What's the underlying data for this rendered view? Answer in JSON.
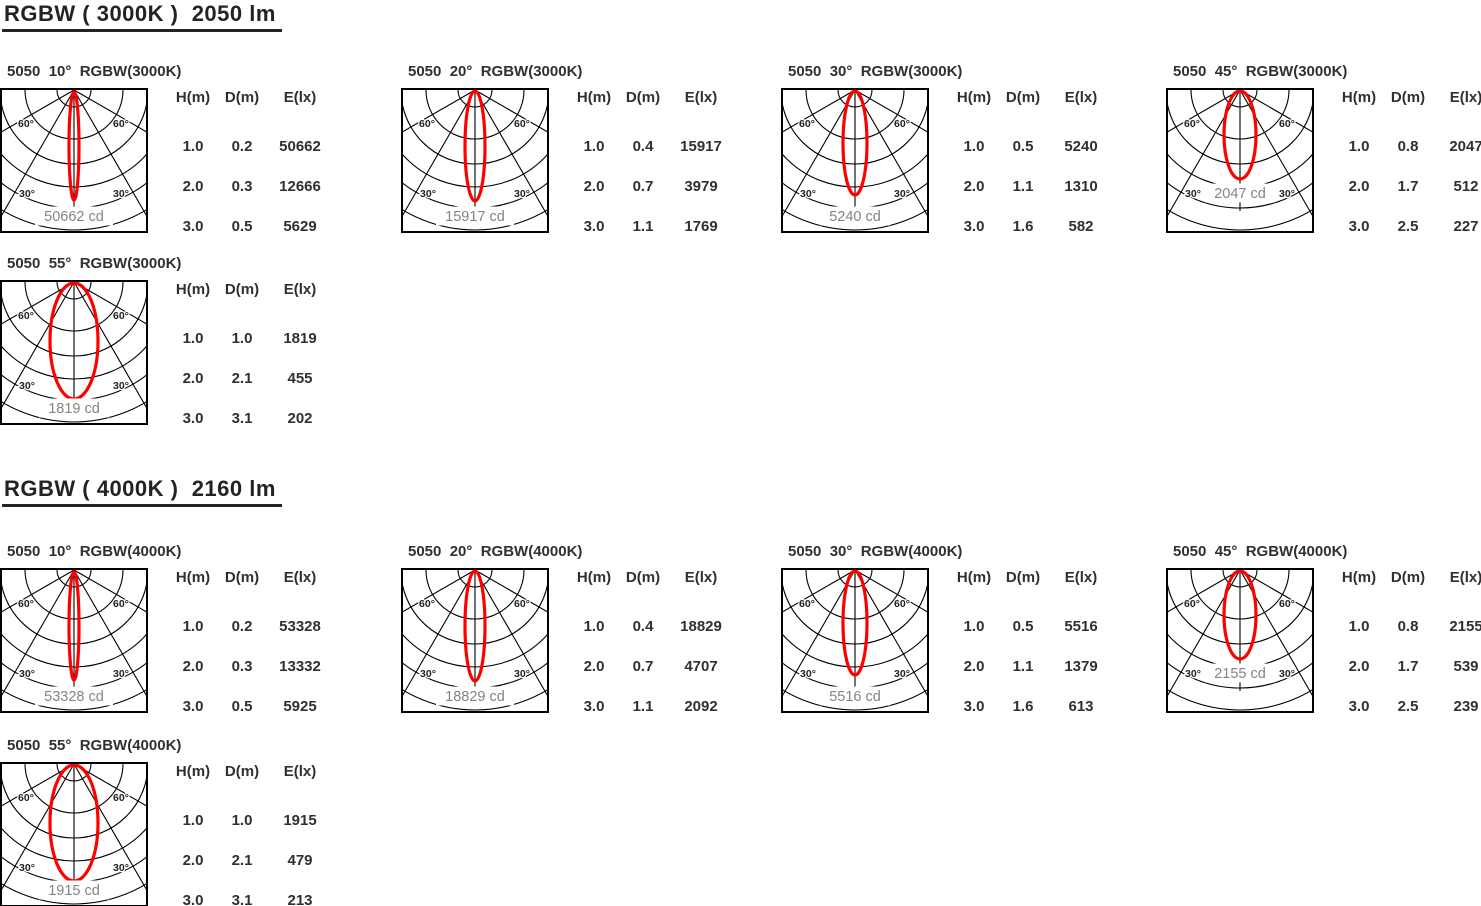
{
  "table_headers": [
    "H(m)",
    "D(m)",
    "E(lx)"
  ],
  "polar_labels": {
    "deg60": "60°",
    "deg30": "30°"
  },
  "colors": {
    "beam": "#ff0000",
    "grid": "#000000",
    "cd_text": "#848484",
    "text": "#262222"
  },
  "sections": [
    {
      "heading": "RGBW ( 3000K )  2050 lm",
      "units": [
        {
          "title": "5050  10°  RGBW(3000K)",
          "beam_angle": 10,
          "cd_label": "50662 cd",
          "table": [
            [
              "1.0",
              "0.2",
              "50662"
            ],
            [
              "2.0",
              "0.3",
              "12666"
            ],
            [
              "3.0",
              "0.5",
              "5629"
            ]
          ]
        },
        {
          "title": "5050  20°  RGBW(3000K)",
          "beam_angle": 20,
          "cd_label": "15917 cd",
          "table": [
            [
              "1.0",
              "0.4",
              "15917"
            ],
            [
              "2.0",
              "0.7",
              "3979"
            ],
            [
              "3.0",
              "1.1",
              "1769"
            ]
          ]
        },
        {
          "title": "5050  30°  RGBW(3000K)",
          "beam_angle": 30,
          "cd_label": "5240 cd",
          "table": [
            [
              "1.0",
              "0.5",
              "5240"
            ],
            [
              "2.0",
              "1.1",
              "1310"
            ],
            [
              "3.0",
              "1.6",
              "582"
            ]
          ]
        },
        {
          "title": "5050  45°  RGBW(3000K)",
          "beam_angle": 45,
          "cd_label": "2047 cd",
          "table": [
            [
              "1.0",
              "0.8",
              "2047"
            ],
            [
              "2.0",
              "1.7",
              "512"
            ],
            [
              "3.0",
              "2.5",
              "227"
            ]
          ]
        },
        {
          "title": "5050  55°  RGBW(3000K)",
          "beam_angle": 55,
          "cd_label": "1819 cd",
          "table": [
            [
              "1.0",
              "1.0",
              "1819"
            ],
            [
              "2.0",
              "2.1",
              "455"
            ],
            [
              "3.0",
              "3.1",
              "202"
            ]
          ]
        }
      ]
    },
    {
      "heading": "RGBW ( 4000K )  2160 lm",
      "units": [
        {
          "title": "5050  10°  RGBW(4000K)",
          "beam_angle": 10,
          "cd_label": "53328 cd",
          "table": [
            [
              "1.0",
              "0.2",
              "53328"
            ],
            [
              "2.0",
              "0.3",
              "13332"
            ],
            [
              "3.0",
              "0.5",
              "5925"
            ]
          ]
        },
        {
          "title": "5050  20°  RGBW(4000K)",
          "beam_angle": 20,
          "cd_label": "18829 cd",
          "table": [
            [
              "1.0",
              "0.4",
              "18829"
            ],
            [
              "2.0",
              "0.7",
              "4707"
            ],
            [
              "3.0",
              "1.1",
              "2092"
            ]
          ]
        },
        {
          "title": "5050  30°  RGBW(4000K)",
          "beam_angle": 30,
          "cd_label": "5516 cd",
          "table": [
            [
              "1.0",
              "0.5",
              "5516"
            ],
            [
              "2.0",
              "1.1",
              "1379"
            ],
            [
              "3.0",
              "1.6",
              "613"
            ]
          ]
        },
        {
          "title": "5050  45°  RGBW(4000K)",
          "beam_angle": 45,
          "cd_label": "2155 cd",
          "table": [
            [
              "1.0",
              "0.8",
              "2155"
            ],
            [
              "2.0",
              "1.7",
              "539"
            ],
            [
              "3.0",
              "2.5",
              "239"
            ]
          ]
        },
        {
          "title": "5050  55°  RGBW(4000K)",
          "beam_angle": 55,
          "cd_label": "1915 cd",
          "table": [
            [
              "1.0",
              "1.0",
              "1915"
            ],
            [
              "2.0",
              "2.1",
              "479"
            ],
            [
              "3.0",
              "3.1",
              "213"
            ]
          ]
        }
      ]
    }
  ],
  "chart_data": [
    {
      "type": "polar",
      "title": "5050 10° RGBW(3000K)",
      "group": "RGBW (3000K) 2050 lm",
      "cct": "3000K",
      "luminous_flux_lm": 2050,
      "beam_angle_deg": 10,
      "peak_candela": 50662,
      "angle_grid_deg": [
        30,
        60
      ],
      "illuminance_table": {
        "headers": [
          "H(m)",
          "D(m)",
          "E(lx)"
        ],
        "rows": [
          [
            1.0,
            0.2,
            50662
          ],
          [
            2.0,
            0.3,
            12666
          ],
          [
            3.0,
            0.5,
            5629
          ]
        ]
      }
    },
    {
      "type": "polar",
      "title": "5050 20° RGBW(3000K)",
      "group": "RGBW (3000K) 2050 lm",
      "cct": "3000K",
      "luminous_flux_lm": 2050,
      "beam_angle_deg": 20,
      "peak_candela": 15917,
      "angle_grid_deg": [
        30,
        60
      ],
      "illuminance_table": {
        "headers": [
          "H(m)",
          "D(m)",
          "E(lx)"
        ],
        "rows": [
          [
            1.0,
            0.4,
            15917
          ],
          [
            2.0,
            0.7,
            3979
          ],
          [
            3.0,
            1.1,
            1769
          ]
        ]
      }
    },
    {
      "type": "polar",
      "title": "5050 30° RGBW(3000K)",
      "group": "RGBW (3000K) 2050 lm",
      "cct": "3000K",
      "luminous_flux_lm": 2050,
      "beam_angle_deg": 30,
      "peak_candela": 5240,
      "angle_grid_deg": [
        30,
        60
      ],
      "illuminance_table": {
        "headers": [
          "H(m)",
          "D(m)",
          "E(lx)"
        ],
        "rows": [
          [
            1.0,
            0.5,
            5240
          ],
          [
            2.0,
            1.1,
            1310
          ],
          [
            3.0,
            1.6,
            582
          ]
        ]
      }
    },
    {
      "type": "polar",
      "title": "5050 45° RGBW(3000K)",
      "group": "RGBW (3000K) 2050 lm",
      "cct": "3000K",
      "luminous_flux_lm": 2050,
      "beam_angle_deg": 45,
      "peak_candela": 2047,
      "angle_grid_deg": [
        30,
        60
      ],
      "illuminance_table": {
        "headers": [
          "H(m)",
          "D(m)",
          "E(lx)"
        ],
        "rows": [
          [
            1.0,
            0.8,
            2047
          ],
          [
            2.0,
            1.7,
            512
          ],
          [
            3.0,
            2.5,
            227
          ]
        ]
      }
    },
    {
      "type": "polar",
      "title": "5050 55° RGBW(3000K)",
      "group": "RGBW (3000K) 2050 lm",
      "cct": "3000K",
      "luminous_flux_lm": 2050,
      "beam_angle_deg": 55,
      "peak_candela": 1819,
      "angle_grid_deg": [
        30,
        60
      ],
      "illuminance_table": {
        "headers": [
          "H(m)",
          "D(m)",
          "E(lx)"
        ],
        "rows": [
          [
            1.0,
            1.0,
            1819
          ],
          [
            2.0,
            2.1,
            455
          ],
          [
            3.0,
            3.1,
            202
          ]
        ]
      }
    },
    {
      "type": "polar",
      "title": "5050 10° RGBW(4000K)",
      "group": "RGBW (4000K) 2160 lm",
      "cct": "4000K",
      "luminous_flux_lm": 2160,
      "beam_angle_deg": 10,
      "peak_candela": 53328,
      "angle_grid_deg": [
        30,
        60
      ],
      "illuminance_table": {
        "headers": [
          "H(m)",
          "D(m)",
          "E(lx)"
        ],
        "rows": [
          [
            1.0,
            0.2,
            53328
          ],
          [
            2.0,
            0.3,
            13332
          ],
          [
            3.0,
            0.5,
            5925
          ]
        ]
      }
    },
    {
      "type": "polar",
      "title": "5050 20° RGBW(4000K)",
      "group": "RGBW (4000K) 2160 lm",
      "cct": "4000K",
      "luminous_flux_lm": 2160,
      "beam_angle_deg": 20,
      "peak_candela": 18829,
      "angle_grid_deg": [
        30,
        60
      ],
      "illuminance_table": {
        "headers": [
          "H(m)",
          "D(m)",
          "E(lx)"
        ],
        "rows": [
          [
            1.0,
            0.4,
            18829
          ],
          [
            2.0,
            0.7,
            4707
          ],
          [
            3.0,
            1.1,
            2092
          ]
        ]
      }
    },
    {
      "type": "polar",
      "title": "5050 30° RGBW(4000K)",
      "group": "RGBW (4000K) 2160 lm",
      "cct": "4000K",
      "luminous_flux_lm": 2160,
      "beam_angle_deg": 30,
      "peak_candela": 5516,
      "angle_grid_deg": [
        30,
        60
      ],
      "illuminance_table": {
        "headers": [
          "H(m)",
          "D(m)",
          "E(lx)"
        ],
        "rows": [
          [
            1.0,
            0.5,
            5516
          ],
          [
            2.0,
            1.1,
            1379
          ],
          [
            3.0,
            1.6,
            613
          ]
        ]
      }
    },
    {
      "type": "polar",
      "title": "5050 45° RGBW(4000K)",
      "group": "RGBW (4000K) 2160 lm",
      "cct": "4000K",
      "luminous_flux_lm": 2160,
      "beam_angle_deg": 45,
      "peak_candela": 2155,
      "angle_grid_deg": [
        30,
        60
      ],
      "illuminance_table": {
        "headers": [
          "H(m)",
          "D(m)",
          "E(lx)"
        ],
        "rows": [
          [
            1.0,
            0.8,
            2155
          ],
          [
            2.0,
            1.7,
            539
          ],
          [
            3.0,
            2.5,
            239
          ]
        ]
      }
    },
    {
      "type": "polar",
      "title": "5050 55° RGBW(4000K)",
      "group": "RGBW (4000K) 2160 lm",
      "cct": "4000K",
      "luminous_flux_lm": 2160,
      "beam_angle_deg": 55,
      "peak_candela": 1915,
      "angle_grid_deg": [
        30,
        60
      ],
      "illuminance_table": {
        "headers": [
          "H(m)",
          "D(m)",
          "E(lx)"
        ],
        "rows": [
          [
            1.0,
            1.0,
            1915
          ],
          [
            2.0,
            2.1,
            479
          ],
          [
            3.0,
            3.1,
            213
          ]
        ]
      }
    }
  ]
}
